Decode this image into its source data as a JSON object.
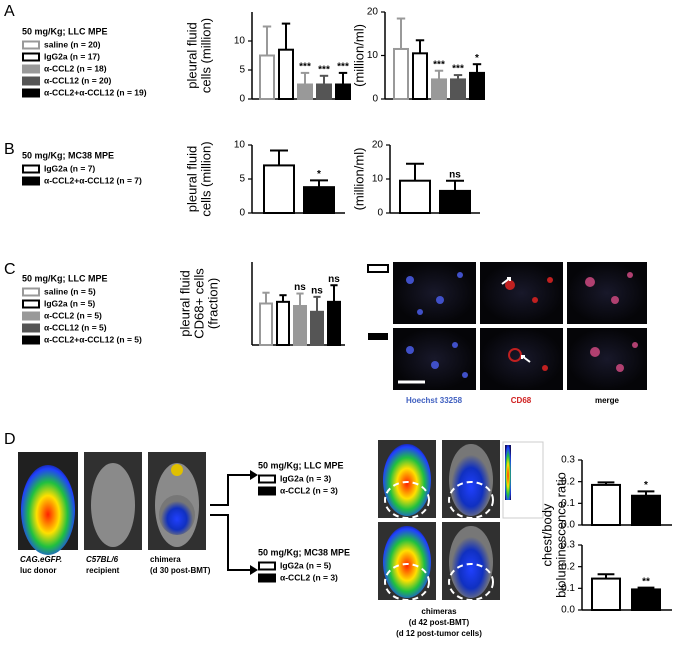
{
  "chart_data": [
    {
      "type": "bar",
      "legend_title": "50 mg/Kg; LLC MPE",
      "series": [
        {
          "name": "saline (n = 20)",
          "color": "#999999",
          "fill": "#ffffff",
          "values": [
            7.5,
            11.5
          ],
          "errors": [
            5,
            7
          ],
          "annotations": [
            null,
            null
          ]
        },
        {
          "name": "IgG2a (n = 17)",
          "color": "#000000",
          "fill": "#ffffff",
          "values": [
            8.5,
            10.5
          ],
          "errors": [
            4.5,
            3
          ],
          "annotations": [
            null,
            null
          ]
        },
        {
          "name": "α-CCL2 (n = 18)",
          "color": "#999999",
          "fill": "#999999",
          "values": [
            2.5,
            4.5
          ],
          "errors": [
            2,
            2
          ],
          "annotations": [
            "***",
            "***"
          ]
        },
        {
          "name": "α-CCL12 (n = 20)",
          "color": "#555555",
          "fill": "#555555",
          "values": [
            2.5,
            4.5
          ],
          "errors": [
            1.5,
            1
          ],
          "annotations": [
            "***",
            "***"
          ]
        },
        {
          "name": "α-CCL2+α-CCL12 (n = 19)",
          "color": "#000000",
          "fill": "#000000",
          "values": [
            2.5,
            6
          ],
          "errors": [
            2,
            2
          ],
          "annotations": [
            "***",
            "*"
          ]
        }
      ],
      "axes": [
        {
          "ylabel": [
            "pleural fluid",
            "cells (million)"
          ],
          "ylim": [
            0,
            15
          ],
          "yticks": [
            0,
            5,
            10
          ]
        },
        {
          "ylabel": [
            "(million/ml)"
          ],
          "ylim": [
            0,
            20
          ],
          "yticks": [
            0,
            10,
            20
          ]
        }
      ]
    },
    {
      "type": "bar",
      "legend_title": "50 mg/Kg; MC38 MPE",
      "series": [
        {
          "name": "IgG2a (n = 7)",
          "color": "#000000",
          "fill": "#ffffff",
          "values": [
            7,
            9.5
          ],
          "errors": [
            2.2,
            5
          ],
          "annotations": [
            null,
            null
          ]
        },
        {
          "name": "α-CCL2+α-CCL12 (n = 7)",
          "color": "#000000",
          "fill": "#000000",
          "values": [
            3.8,
            6.5
          ],
          "errors": [
            1,
            3
          ],
          "annotations": [
            "*",
            "ns"
          ]
        }
      ],
      "axes": [
        {
          "ylabel": [
            "pleural fluid",
            "cells (million)"
          ],
          "ylim": [
            0,
            10
          ],
          "yticks": [
            0,
            5,
            10
          ]
        },
        {
          "ylabel": [
            "(million/ml)"
          ],
          "ylim": [
            0,
            20
          ],
          "yticks": [
            0,
            10,
            20
          ]
        }
      ]
    },
    {
      "type": "bar",
      "legend_title": "50 mg/Kg; LLC MPE",
      "series": [
        {
          "name": "saline (n = 5)",
          "color": "#999999",
          "fill": "#ffffff",
          "values": [
            0.5
          ],
          "errors": [
            0.13
          ],
          "annotations": [
            null
          ]
        },
        {
          "name": "IgG2a (n = 5)",
          "color": "#000000",
          "fill": "#ffffff",
          "values": [
            0.52
          ],
          "errors": [
            0.08
          ],
          "annotations": [
            null
          ]
        },
        {
          "name": "α-CCL2 (n = 5)",
          "color": "#999999",
          "fill": "#999999",
          "values": [
            0.47
          ],
          "errors": [
            0.15
          ],
          "annotations": [
            "ns"
          ]
        },
        {
          "name": "α-CCL12 (n = 5)",
          "color": "#555555",
          "fill": "#555555",
          "values": [
            0.4
          ],
          "errors": [
            0.18
          ],
          "annotations": [
            "ns"
          ]
        },
        {
          "name": "α-CCL2+α-CCL12 (n = 5)",
          "color": "#000000",
          "fill": "#000000",
          "values": [
            0.52
          ],
          "errors": [
            0.2
          ],
          "annotations": [
            "ns"
          ]
        }
      ],
      "axes": [
        {
          "ylabel": [
            "pleural fluid",
            "CD68+ cells",
            "(fraction)"
          ],
          "ylim": [
            0,
            1
          ]
        }
      ]
    },
    {
      "type": "bar",
      "legend_title": "50 mg/Kg; LLC MPE",
      "series": [
        {
          "name": "IgG2a (n = 3)",
          "color": "#000000",
          "fill": "#ffffff",
          "values": [
            0.185
          ],
          "errors": [
            0.012
          ],
          "annotations": [
            null
          ]
        },
        {
          "name": "α-CCL2 (n = 3)",
          "color": "#000000",
          "fill": "#000000",
          "values": [
            0.135
          ],
          "errors": [
            0.02
          ],
          "annotations": [
            "*"
          ]
        }
      ],
      "axes": [
        {
          "ylabel": [
            "chest/body",
            "bioluminescence ratio"
          ],
          "ylim": [
            0,
            0.3
          ],
          "yticks": [
            {
              "value": 0,
              "label": "0.0"
            },
            0.1,
            0.2,
            0.3
          ]
        }
      ]
    },
    {
      "type": "bar",
      "legend_title": "50 mg/Kg; MC38 MPE",
      "series": [
        {
          "name": "IgG2a (n = 5)",
          "color": "#000000",
          "fill": "#ffffff",
          "values": [
            0.145
          ],
          "errors": [
            0.02
          ],
          "annotations": [
            null
          ]
        },
        {
          "name": "α-CCL2 (n = 3)",
          "color": "#000000",
          "fill": "#000000",
          "values": [
            0.095
          ],
          "errors": [
            0.008
          ],
          "annotations": [
            "**"
          ]
        }
      ],
      "axes": [
        {
          "ylim": [
            0,
            0.3
          ],
          "yticks": [
            {
              "value": 0,
              "label": "0.0"
            },
            0.1,
            0.2,
            0.3
          ]
        }
      ]
    }
  ],
  "figure": {
    "panels": [
      "A",
      "B",
      "C",
      "D"
    ],
    "microscopy_labels": [
      "Hoechst 33258",
      "CD68",
      "merge"
    ],
    "mouse_captions": [
      [
        "CAG.eGFP.",
        "luc donor"
      ],
      [
        "C57BL/6",
        "recipient"
      ],
      [
        "chimera",
        "(d 30 post-BMT)"
      ]
    ],
    "chimera_caption": [
      "chimeras",
      "(d 42 post-BMT)",
      "(d 12 post-tumor cells)"
    ]
  }
}
